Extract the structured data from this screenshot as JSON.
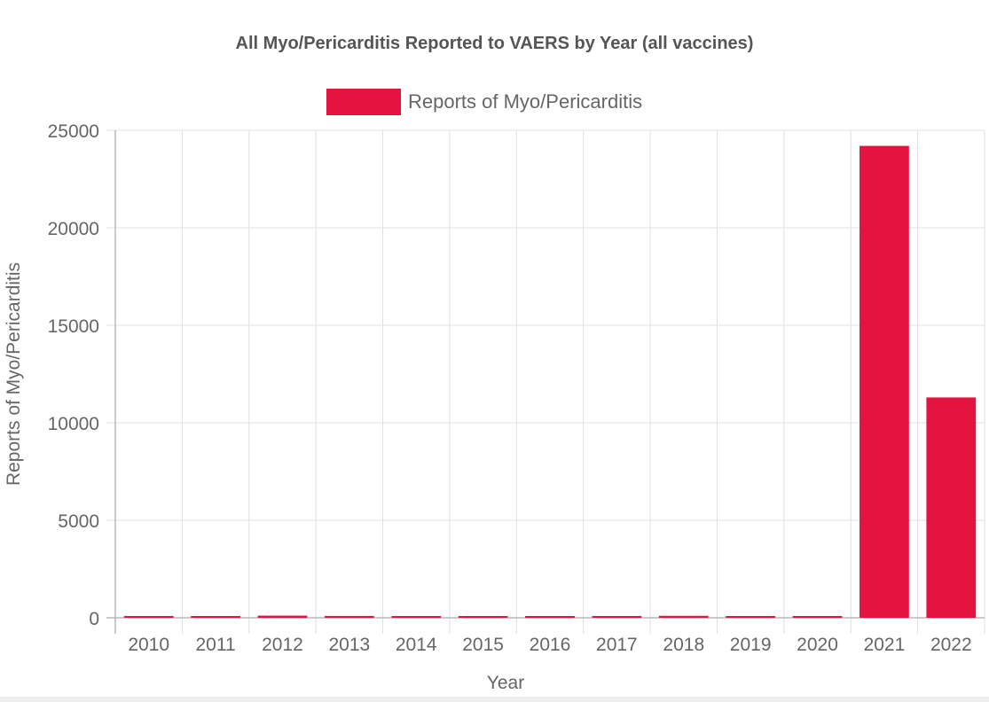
{
  "chart_data": {
    "type": "bar",
    "title": "All Myo/Pericarditis Reported to VAERS by Year (all vaccines)",
    "xlabel": "Year",
    "ylabel": "Reports of Myo/Pericarditis",
    "categories": [
      "2010",
      "2011",
      "2012",
      "2013",
      "2014",
      "2015",
      "2016",
      "2017",
      "2018",
      "2019",
      "2020",
      "2021",
      "2022"
    ],
    "series": [
      {
        "name": "Reports of Myo/Pericarditis",
        "values": [
          40,
          45,
          110,
          95,
          45,
          30,
          40,
          50,
          100,
          50,
          55,
          24200,
          11300
        ]
      }
    ],
    "ylim": [
      0,
      25000
    ],
    "yticks": [
      "0",
      "5000",
      "10000",
      "15000",
      "20000",
      "25000"
    ],
    "grid": true,
    "legend": "top",
    "colors": {
      "bar": "#e3143f",
      "grid": "#e0e0e0",
      "axis": "#aaaaaa",
      "text": "#666666"
    }
  }
}
